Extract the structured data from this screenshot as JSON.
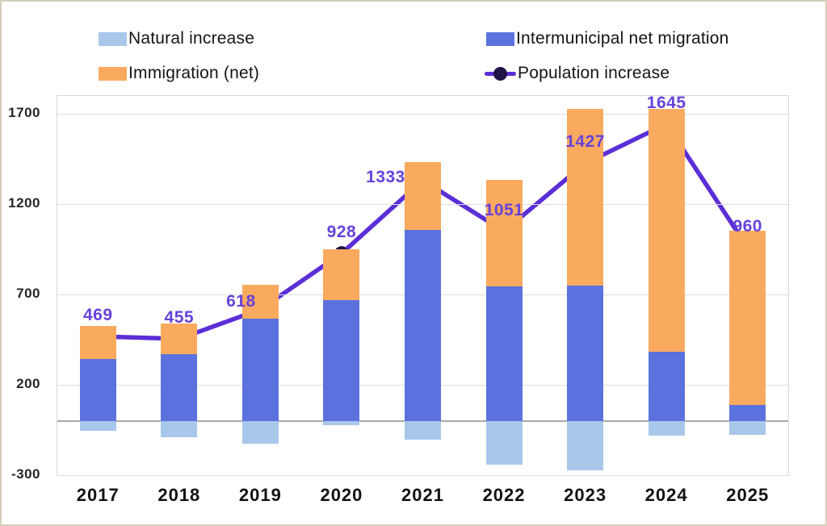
{
  "chart_data": {
    "type": "bar",
    "subtype": "stacked-bars-with-line",
    "title": "",
    "xlabel": "",
    "ylabel": "",
    "categories": [
      "2017",
      "2018",
      "2019",
      "2020",
      "2021",
      "2022",
      "2023",
      "2024",
      "2025"
    ],
    "series": [
      {
        "name": "Natural increase",
        "type": "bar",
        "color": "#A9C7EA",
        "values": [
          -55,
          -90,
          -125,
          -25,
          -105,
          -240,
          -275,
          -80,
          -75
        ]
      },
      {
        "name": "Intermunicipal net migration",
        "type": "bar",
        "color": "#5B72DE",
        "values": [
          345,
          370,
          565,
          670,
          1060,
          745,
          750,
          385,
          90
        ]
      },
      {
        "name": "Immigration (net)",
        "type": "bar",
        "color": "#FAAA5F",
        "values": [
          180,
          170,
          190,
          280,
          375,
          590,
          980,
          1345,
          965
        ]
      },
      {
        "name": "Population increase",
        "type": "line",
        "color": "#5B2ED6",
        "marker_color": "#211445",
        "label_color": "#6742D9",
        "values": [
          469,
          455,
          618,
          928,
          1333,
          1051,
          1427,
          1645,
          960
        ]
      }
    ],
    "y_ticks": [
      1700,
      1200,
      700,
      200,
      -300
    ],
    "y_range": [
      -300,
      1800
    ],
    "grid": true,
    "zero_line": true,
    "legend_position": "top"
  },
  "legend": {
    "items": [
      {
        "label": "Natural increase",
        "swatch": "rect",
        "color": "#A9C7EA"
      },
      {
        "label": "Immigration (net)",
        "swatch": "rect",
        "color": "#FAAA5F"
      },
      {
        "label": "Intermunicipal net migration",
        "swatch": "rect",
        "color": "#5B72DE"
      },
      {
        "label": "Population increase",
        "swatch": "line-dot",
        "color": "#5B2ED6",
        "dot_color": "#211445"
      }
    ]
  }
}
